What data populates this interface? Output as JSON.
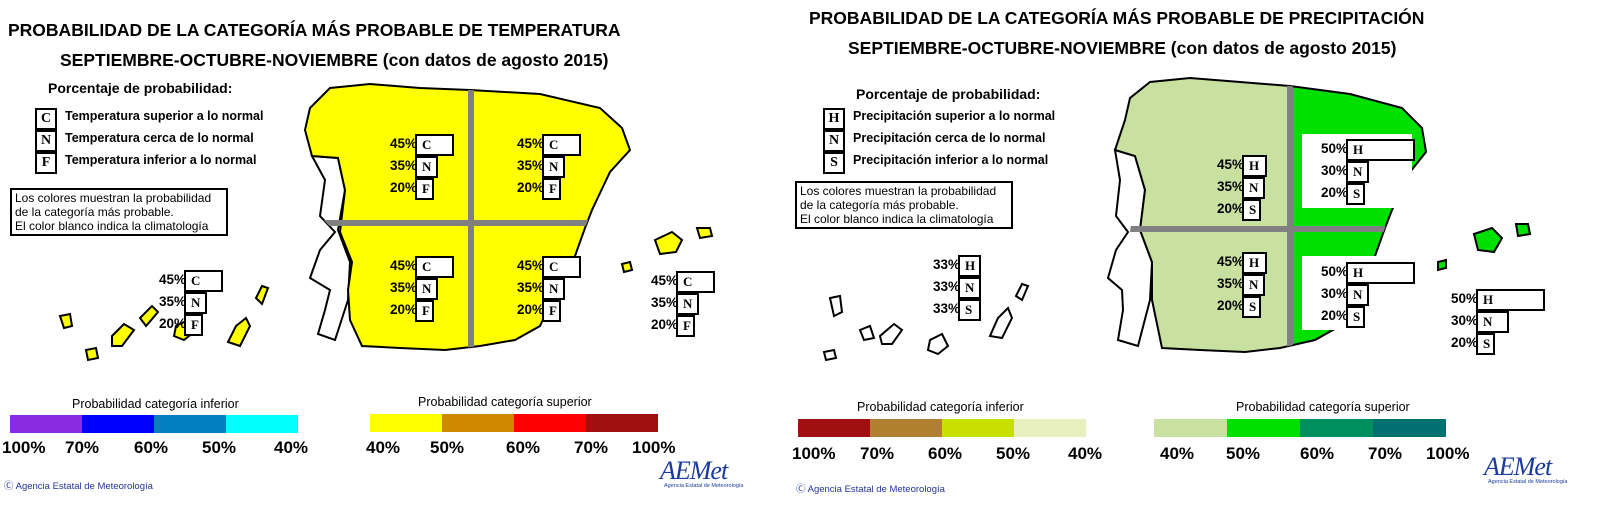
{
  "temperature": {
    "title_line1": "PROBABILIDAD DE LA CATEGORÍA MÁS PROBABLE DE TEMPERATURA",
    "title_line2": "SEPTIEMBRE-OCTUBRE-NOVIEMBRE (con datos de agosto 2015)",
    "legend_heading": "Porcentaje de probabilidad:",
    "key": [
      {
        "code": "C",
        "label": "Temperatura superior a lo normal"
      },
      {
        "code": "N",
        "label": "Temperatura cerca de lo normal"
      },
      {
        "code": "F",
        "label": "Temperatura inferior a lo normal"
      }
    ],
    "note": [
      "Los colores muestran la probabilidad",
      "de la categoría más probable.",
      "El color blanco indica la climatología"
    ],
    "region_fill": "#ffff00",
    "regions": [
      {
        "region": "NW",
        "rows": [
          {
            "pct": "45%",
            "code": "C"
          },
          {
            "pct": "35%",
            "code": "N"
          },
          {
            "pct": "20%",
            "code": "F"
          }
        ]
      },
      {
        "region": "NE",
        "rows": [
          {
            "pct": "45%",
            "code": "C"
          },
          {
            "pct": "35%",
            "code": "N"
          },
          {
            "pct": "20%",
            "code": "F"
          }
        ]
      },
      {
        "region": "SW",
        "rows": [
          {
            "pct": "45%",
            "code": "C"
          },
          {
            "pct": "35%",
            "code": "N"
          },
          {
            "pct": "20%",
            "code": "F"
          }
        ]
      },
      {
        "region": "SE",
        "rows": [
          {
            "pct": "45%",
            "code": "C"
          },
          {
            "pct": "35%",
            "code": "N"
          },
          {
            "pct": "20%",
            "code": "F"
          }
        ]
      },
      {
        "region": "Canarias",
        "rows": [
          {
            "pct": "45%",
            "code": "C"
          },
          {
            "pct": "35%",
            "code": "N"
          },
          {
            "pct": "20%",
            "code": "F"
          }
        ]
      },
      {
        "region": "Baleares",
        "rows": [
          {
            "pct": "45%",
            "code": "C"
          },
          {
            "pct": "35%",
            "code": "N"
          },
          {
            "pct": "20%",
            "code": "F"
          }
        ]
      }
    ],
    "scale_lower": {
      "heading": "Probabilidad categoría inferior",
      "colors": [
        "#8a2be2",
        "#0000ff",
        "#0080c0",
        "#00ffff"
      ],
      "ticks": [
        "100%",
        "70%",
        "60%",
        "50%",
        "40%"
      ]
    },
    "scale_upper": {
      "heading": "Probabilidad categoría superior",
      "colors": [
        "#ffff00",
        "#d08800",
        "#ff0000",
        "#a01010"
      ],
      "ticks": [
        "40%",
        "50%",
        "60%",
        "70%",
        "100%"
      ]
    },
    "credit": "Ⓒ Agencia Estatal de Meteorología",
    "logo": {
      "text": "AEMet",
      "sub": "Agencia Estatal de Meteorología"
    }
  },
  "precipitation": {
    "title_line1": "PROBABILIDAD DE LA CATEGORÍA MÁS PROBABLE DE PRECIPITACIÓN",
    "title_line2": "SEPTIEMBRE-OCTUBRE-NOVIEMBRE (con datos de agosto 2015)",
    "legend_heading": "Porcentaje de probabilidad:",
    "key": [
      {
        "code": "H",
        "label": "Precipitación superior a lo normal"
      },
      {
        "code": "N",
        "label": "Precipitación cerca de lo normal"
      },
      {
        "code": "S",
        "label": "Precipitación inferior a lo normal"
      }
    ],
    "note": [
      "Los colores muestran la probabilidad",
      "de la categoría más probable.",
      "El color blanco indica la climatología"
    ],
    "west_fill": "#c8e0a0",
    "east_fill": "#00e000",
    "regions": [
      {
        "region": "NW",
        "rows": [
          {
            "pct": "45%",
            "code": "H"
          },
          {
            "pct": "35%",
            "code": "N"
          },
          {
            "pct": "20%",
            "code": "S"
          }
        ]
      },
      {
        "region": "NE",
        "rows": [
          {
            "pct": "50%",
            "code": "H"
          },
          {
            "pct": "30%",
            "code": "N"
          },
          {
            "pct": "20%",
            "code": "S"
          }
        ]
      },
      {
        "region": "SW",
        "rows": [
          {
            "pct": "45%",
            "code": "H"
          },
          {
            "pct": "35%",
            "code": "N"
          },
          {
            "pct": "20%",
            "code": "S"
          }
        ]
      },
      {
        "region": "SE",
        "rows": [
          {
            "pct": "50%",
            "code": "H"
          },
          {
            "pct": "30%",
            "code": "N"
          },
          {
            "pct": "20%",
            "code": "S"
          }
        ]
      },
      {
        "region": "Canarias",
        "rows": [
          {
            "pct": "33%",
            "code": "H"
          },
          {
            "pct": "33%",
            "code": "N"
          },
          {
            "pct": "33%",
            "code": "S"
          }
        ]
      },
      {
        "region": "Baleares",
        "rows": [
          {
            "pct": "50%",
            "code": "H"
          },
          {
            "pct": "30%",
            "code": "N"
          },
          {
            "pct": "20%",
            "code": "S"
          }
        ]
      }
    ],
    "scale_lower": {
      "heading": "Probabilidad categoría inferior",
      "colors": [
        "#a01010",
        "#b08030",
        "#c8e000",
        "#e8f0c0"
      ],
      "ticks": [
        "100%",
        "70%",
        "60%",
        "50%",
        "40%"
      ]
    },
    "scale_upper": {
      "heading": "Probabilidad categoría superior",
      "colors": [
        "#c8e0a0",
        "#00e000",
        "#009060",
        "#007070"
      ],
      "ticks": [
        "40%",
        "50%",
        "60%",
        "70%",
        "100%"
      ]
    },
    "credit": "Ⓒ Agencia Estatal de Meteorología",
    "logo": {
      "text": "AEMet",
      "sub": "Agencia Estatal de Meteorología"
    }
  }
}
